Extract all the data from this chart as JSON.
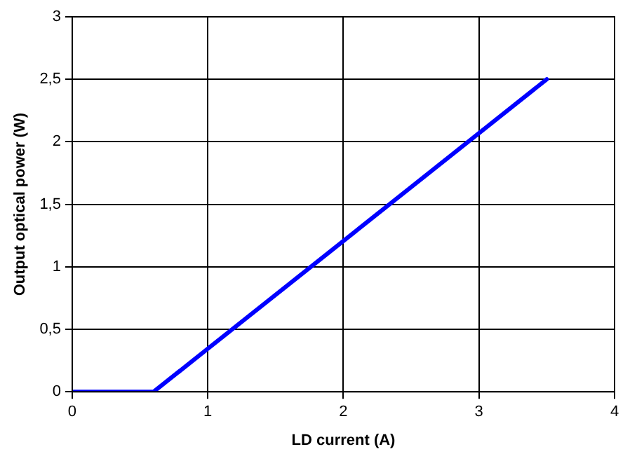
{
  "chart_data": {
    "type": "line",
    "xlabel": "LD current (A)",
    "ylabel": "Output optical power (W)",
    "series": [
      {
        "color": "#0000ff",
        "x": [
          0,
          0.6,
          3.5
        ],
        "values": [
          0,
          0,
          2.5
        ]
      }
    ],
    "xlim": [
      0,
      4
    ],
    "xticks": [
      0,
      1,
      2,
      3,
      4
    ],
    "ylim": [
      0,
      3
    ],
    "yticks": [
      0,
      {
        "value": 0.5,
        "label": "0,5"
      },
      1,
      {
        "value": 1.5,
        "label": "1,5"
      },
      2,
      {
        "value": 2.5,
        "label": "2,5"
      },
      3
    ],
    "grid": true,
    "legend": false,
    "marker": "none",
    "line_style": "solid"
  }
}
